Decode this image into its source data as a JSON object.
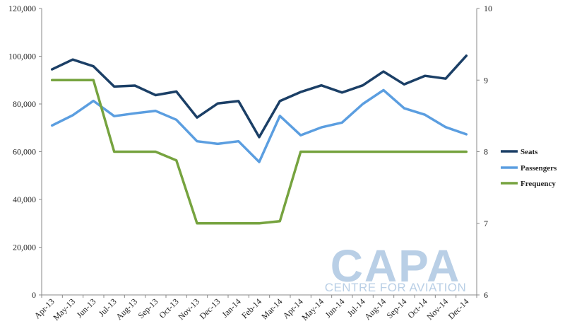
{
  "chart_data": {
    "type": "line",
    "title": "",
    "xlabel": "",
    "ylabel": "",
    "categories": [
      "Apr-13",
      "May-13",
      "Jun-13",
      "Jul-13",
      "Aug-13",
      "Sep-13",
      "Oct-13",
      "Nov-13",
      "Dec-13",
      "Jan-14",
      "Feb-14",
      "Mar-14",
      "Apr-14",
      "May-14",
      "Jun-14",
      "Jul-14",
      "Aug-14",
      "Sep-14",
      "Oct-14",
      "Nov-14",
      "Dec-14"
    ],
    "ylim": [
      0,
      120000
    ],
    "y_ticks": [
      "0",
      "20,000",
      "40,000",
      "60,000",
      "80,000",
      "100,000",
      "120,000"
    ],
    "y2lim": [
      6,
      10
    ],
    "y2_ticks": [
      "6",
      "7",
      "8",
      "9",
      "10"
    ],
    "grid": false,
    "legend_position": "right",
    "series": [
      {
        "name": "Seats",
        "axis": "left",
        "color": "#1b3f66",
        "values": [
          94500,
          98600,
          95800,
          87300,
          87700,
          83700,
          85200,
          74300,
          80200,
          81200,
          66100,
          81200,
          85000,
          87800,
          84800,
          87800,
          93600,
          88200,
          91800,
          90600,
          100200
        ]
      },
      {
        "name": "Passengers",
        "axis": "left",
        "color": "#5b9ee0",
        "values": [
          71000,
          75300,
          81300,
          74900,
          76100,
          77100,
          73400,
          64400,
          63300,
          64400,
          55700,
          75000,
          66900,
          70200,
          72200,
          80000,
          85800,
          78200,
          75500,
          70300,
          67300
        ]
      },
      {
        "name": "Frequency",
        "axis": "right",
        "color": "#76a33f",
        "values": [
          9,
          9,
          9,
          8,
          8,
          8,
          7.88,
          7,
          7,
          7,
          7,
          7.03,
          8,
          8,
          8,
          8,
          8,
          8,
          8,
          8,
          8
        ]
      }
    ]
  },
  "watermark": {
    "brand": "CAPA",
    "tagline": "CENTRE FOR AVIATION",
    "color": "#b9cfe6"
  }
}
